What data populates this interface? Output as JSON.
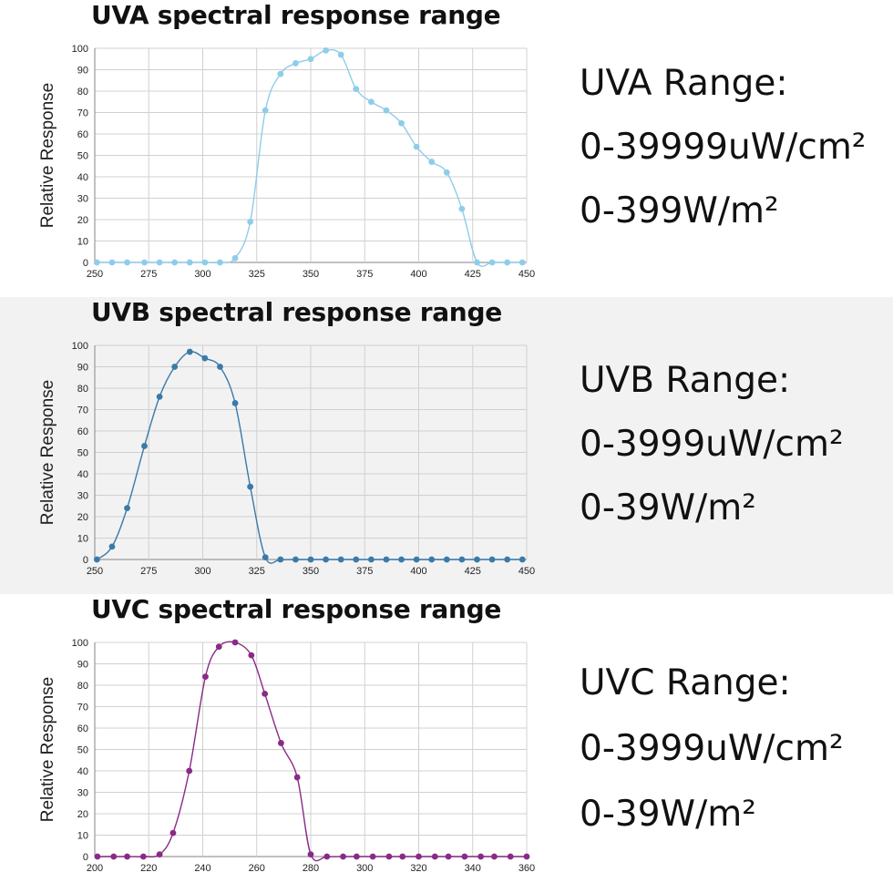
{
  "charts": [
    {
      "title": "UVA spectral response range",
      "range_lines": [
        "UVA Range:",
        "0-39999uW/cm²",
        "0-399W/m²"
      ]
    },
    {
      "title": "UVB spectral response range",
      "range_lines": [
        "UVB Range:",
        "0-3999uW/cm²",
        "0-39W/m²"
      ]
    },
    {
      "title": "UVC spectral response range",
      "range_lines": [
        "UVC Range:",
        "0-3999uW/cm²",
        "0-39W/m²"
      ]
    }
  ],
  "chart_data": [
    {
      "type": "line",
      "title": "UVA spectral response range",
      "xlabel": "",
      "ylabel": "Relative Response",
      "xlim": [
        250,
        450
      ],
      "ylim": [
        0,
        100
      ],
      "x_ticks": [
        250,
        275,
        300,
        325,
        350,
        375,
        400,
        425,
        450
      ],
      "y_ticks": [
        0,
        10,
        20,
        30,
        40,
        50,
        60,
        70,
        80,
        90,
        100
      ],
      "grid": true,
      "color": "#8ecdea",
      "series": [
        {
          "x": [
            251,
            258,
            265,
            273,
            280,
            287,
            294,
            301,
            308,
            315,
            322,
            329,
            336,
            343,
            350,
            357,
            364,
            371,
            378,
            385,
            392,
            399,
            406,
            413,
            420,
            427,
            434,
            441,
            448
          ],
          "y": [
            0,
            0,
            0,
            0,
            0,
            0,
            0,
            0,
            0,
            2,
            19,
            71,
            88,
            93,
            95,
            99,
            97,
            81,
            75,
            71,
            65,
            54,
            47,
            42,
            25,
            0,
            0,
            0,
            0
          ]
        }
      ]
    },
    {
      "type": "line",
      "title": "UVB spectral response range",
      "xlabel": "",
      "ylabel": "Relative Response",
      "xlim": [
        250,
        450
      ],
      "ylim": [
        0,
        100
      ],
      "x_ticks": [
        250,
        275,
        300,
        325,
        350,
        375,
        400,
        425,
        450
      ],
      "y_ticks": [
        0,
        10,
        20,
        30,
        40,
        50,
        60,
        70,
        80,
        90,
        100
      ],
      "grid": true,
      "color": "#3a7aa8",
      "series": [
        {
          "x": [
            251,
            258,
            265,
            273,
            280,
            287,
            294,
            301,
            308,
            315,
            322,
            329,
            336,
            343,
            350,
            357,
            364,
            371,
            378,
            385,
            392,
            399,
            406,
            413,
            420,
            427,
            434,
            441,
            448
          ],
          "y": [
            0,
            6,
            24,
            53,
            76,
            90,
            97,
            94,
            90,
            73,
            34,
            1,
            0,
            0,
            0,
            0,
            0,
            0,
            0,
            0,
            0,
            0,
            0,
            0,
            0,
            0,
            0,
            0,
            0
          ]
        }
      ]
    },
    {
      "type": "line",
      "title": "UVC spectral response range",
      "xlabel": "",
      "ylabel": "Relative Response",
      "xlim": [
        200,
        360
      ],
      "ylim": [
        0,
        100
      ],
      "x_ticks": [
        200,
        220,
        240,
        260,
        280,
        300,
        320,
        340,
        360
      ],
      "y_ticks": [
        0,
        10,
        20,
        30,
        40,
        50,
        60,
        70,
        80,
        90,
        100
      ],
      "grid": true,
      "color": "#8a2a86",
      "series": [
        {
          "x": [
            201,
            207,
            212,
            218,
            224,
            229,
            235,
            241,
            246,
            252,
            258,
            263,
            269,
            275,
            280,
            286,
            292,
            297,
            303,
            309,
            314,
            320,
            326,
            331,
            337,
            343,
            348,
            354,
            360
          ],
          "y": [
            0,
            0,
            0,
            0,
            1,
            11,
            40,
            84,
            98,
            100,
            94,
            76,
            53,
            37,
            1,
            0,
            0,
            0,
            0,
            0,
            0,
            0,
            0,
            0,
            0,
            0,
            0,
            0,
            0
          ]
        }
      ]
    }
  ]
}
